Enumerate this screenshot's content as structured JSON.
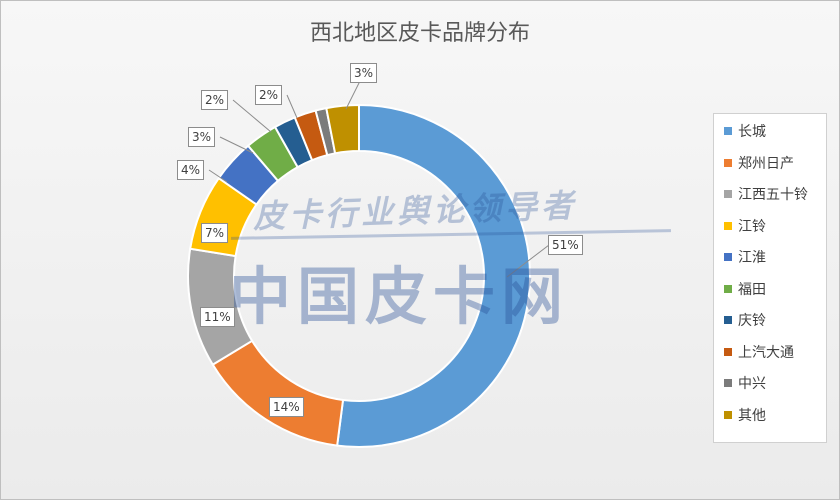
{
  "chart_data": {
    "type": "pie",
    "title": "西北地区皮卡品牌分布",
    "categories": [
      "长城",
      "郑州日产",
      "江西五十铃",
      "江铃",
      "江淮",
      "福田",
      "庆铃",
      "上汽大通",
      "中兴",
      "其他"
    ],
    "values": [
      51,
      14,
      11,
      7,
      4,
      3,
      2,
      2,
      1,
      3
    ],
    "value_labels": [
      "51%",
      "14%",
      "11%",
      "7%",
      "4%",
      "3%",
      "2%",
      "2%",
      "",
      "3%"
    ],
    "colors": [
      "#5b9bd5",
      "#ed7d31",
      "#a5a5a5",
      "#ffc000",
      "#4472c4",
      "#70ad47",
      "#255e91",
      "#c55a11",
      "#7b7b7b",
      "#bf9000"
    ],
    "donut": true,
    "legend_position": "right"
  },
  "watermark": {
    "main": "中国皮卡网",
    "sub": "皮卡行业舆论领导者"
  }
}
